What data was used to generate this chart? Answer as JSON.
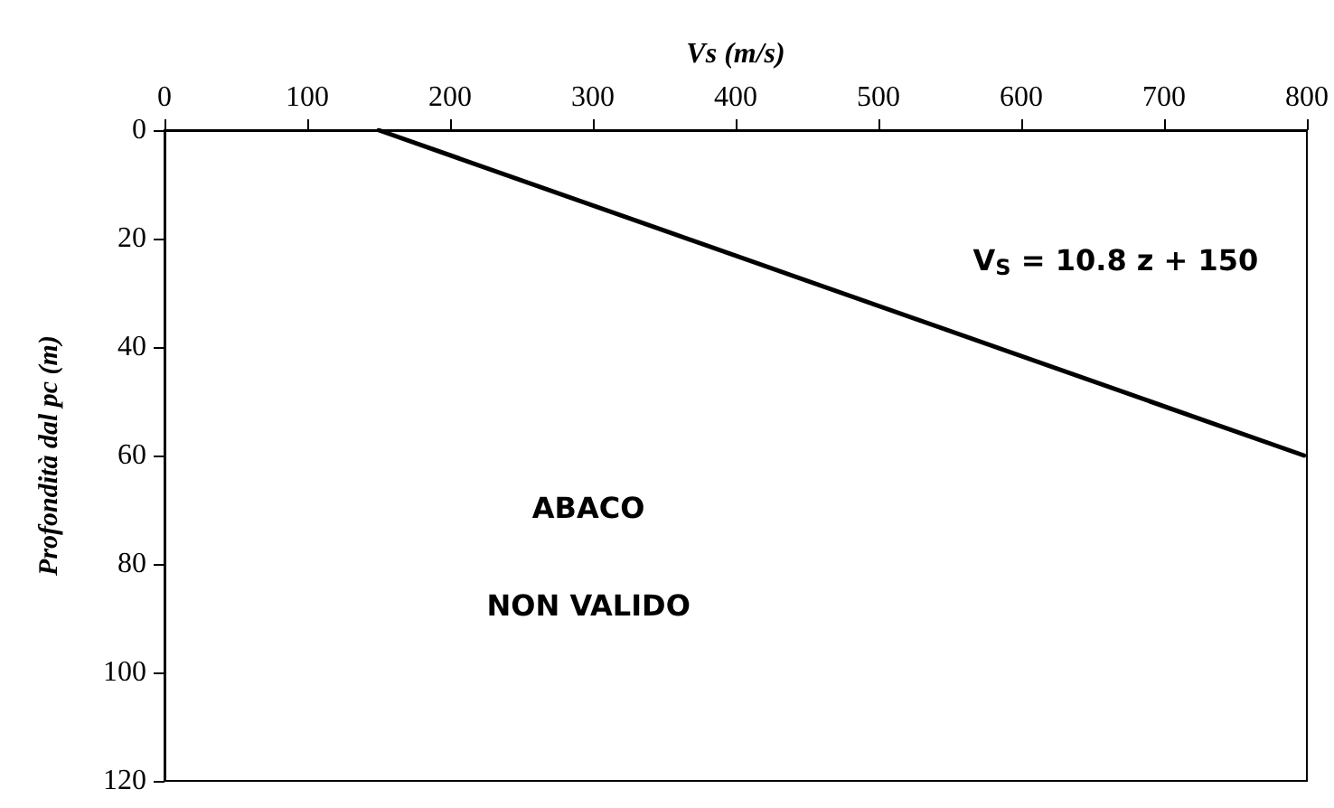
{
  "chart_data": {
    "type": "line",
    "xlabel": "Vs (m/s)",
    "ylabel": "Profondità dal pc (m)",
    "x": [
      150,
      798
    ],
    "series": [
      {
        "color": "#000000",
        "values": [
          0,
          60
        ]
      }
    ],
    "xlim": [
      0,
      800
    ],
    "xticks": [
      0,
      100,
      200,
      300,
      400,
      500,
      600,
      700,
      800
    ],
    "ylim": [
      120,
      0
    ],
    "yticks": [
      0,
      20,
      40,
      60,
      80,
      100,
      120
    ],
    "annotations": [
      "V$_{S}$ = 10.8 z + 150",
      "ABACO",
      "NON VALIDO"
    ],
    "grid": false,
    "marker": "none",
    "line_style": "solid"
  }
}
